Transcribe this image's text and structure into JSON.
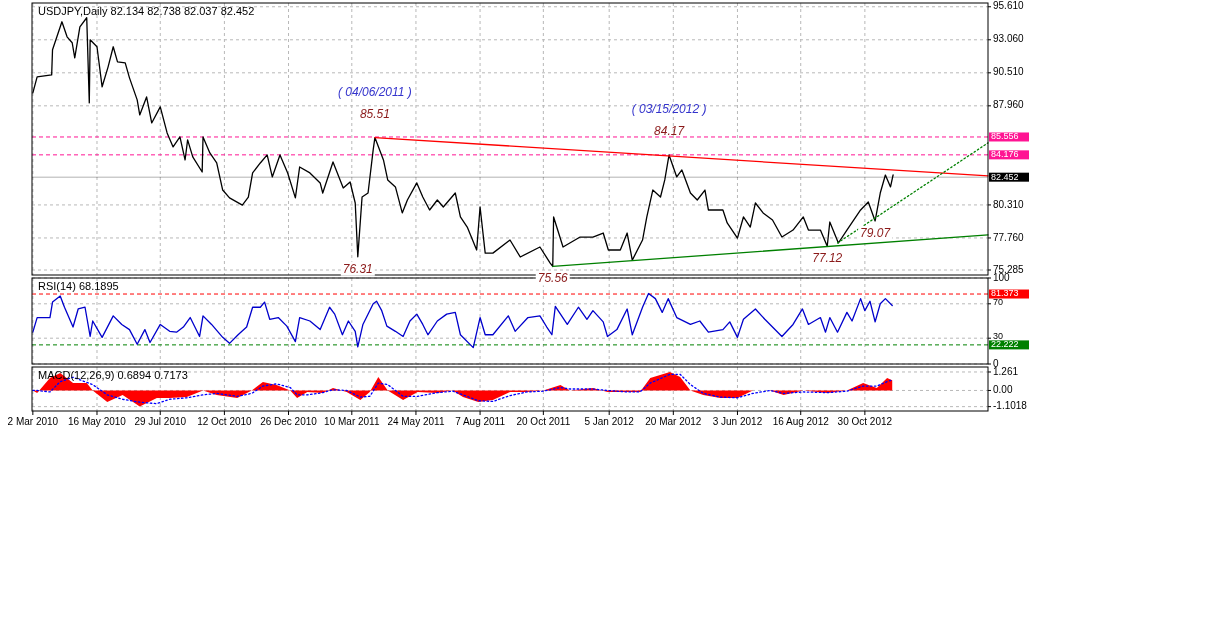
{
  "chart_data": [
    {
      "type": "line",
      "title": "USDJPY,Daily  82.134 82.738 82.037 82.452",
      "xlim": [
        "2010-03-01",
        "2013-03-23"
      ],
      "xticks": [
        {
          "value": "2010-03-02",
          "label": null
        },
        {
          "value": "2010-05-16",
          "label": null
        },
        {
          "value": "2010-07-29",
          "label": null
        },
        {
          "value": "2010-10-12",
          "label": null
        },
        {
          "value": "2010-12-26",
          "label": null
        },
        {
          "value": "2011-03-10",
          "label": null
        },
        {
          "value": "2011-05-24",
          "label": null
        },
        {
          "value": "2011-08-07",
          "label": null
        },
        {
          "value": "2011-10-20",
          "label": null
        },
        {
          "value": "2012-01-05",
          "label": null
        },
        {
          "value": "2012-03-20",
          "label": null
        },
        {
          "value": "2012-06-03",
          "label": null
        },
        {
          "value": "2012-08-16",
          "label": null
        },
        {
          "value": "2012-10-30",
          "label": null
        }
      ],
      "ylim": [
        74.9,
        95.9
      ],
      "yticks": [
        {
          "value": 95.61,
          "label": "95.610"
        },
        {
          "value": 93.06,
          "label": "93.060"
        },
        {
          "value": 90.51,
          "label": "90.510"
        },
        {
          "value": 87.96,
          "label": "87.960"
        },
        {
          "value": 80.31,
          "label": "80.310"
        },
        {
          "value": 77.76,
          "label": "77.760"
        },
        75.285
      ],
      "grid": true,
      "tick_labels": "y",
      "series": [
        {
          "color": "#000000",
          "x": [
            "2010-03-02",
            "2010-03-07",
            "2010-03-24",
            "2010-03-25",
            "2010-04-05",
            "2010-04-11",
            "2010-04-17",
            "2010-04-20",
            "2010-04-26",
            "2010-05-04",
            "2010-05-07",
            "2010-05-08",
            "2010-05-16",
            "2010-05-22",
            "2010-05-29",
            "2010-06-04",
            "2010-06-09",
            "2010-06-18",
            "2010-06-23",
            "2010-07-02",
            "2010-07-05",
            "2010-07-13",
            "2010-07-19",
            "2010-07-29",
            "2010-08-06",
            "2010-08-13",
            "2010-08-21",
            "2010-08-27",
            "2010-08-30",
            "2010-09-05",
            "2010-09-16",
            "2010-09-17",
            "2010-09-25",
            "2010-10-03",
            "2010-10-10",
            "2010-10-18",
            "2010-11-02",
            "2010-11-09",
            "2010-11-14",
            "2010-11-23",
            "2010-12-01",
            "2010-12-07",
            "2010-12-16",
            "2010-12-25",
            "2011-01-03",
            "2011-01-08",
            "2011-01-20",
            "2011-02-01",
            "2011-02-04",
            "2011-02-16",
            "2011-02-28",
            "2011-03-08",
            "2011-03-14",
            "2011-03-17",
            "2011-03-22",
            "2011-03-29",
            "2011-04-04",
            "2011-04-06",
            "2011-04-16",
            "2011-04-21",
            "2011-04-30",
            "2011-05-08",
            "2011-05-14",
            "2011-05-25",
            "2011-06-01",
            "2011-06-09",
            "2011-06-18",
            "2011-06-25",
            "2011-07-09",
            "2011-07-15",
            "2011-07-23",
            "2011-08-03",
            "2011-08-07",
            "2011-08-13",
            "2011-08-22",
            "2011-09-11",
            "2011-09-23",
            "2011-10-16",
            "2011-10-28",
            "2011-10-31",
            "2011-11-01",
            "2011-11-12",
            "2011-12-02",
            "2011-12-17",
            "2011-12-29",
            "2012-01-04",
            "2012-01-18",
            "2012-01-26",
            "2012-02-01",
            "2012-02-13",
            "2012-02-18",
            "2012-02-25",
            "2012-03-05",
            "2012-03-10",
            "2012-03-15",
            "2012-03-24",
            "2012-03-30",
            "2012-04-09",
            "2012-04-17",
            "2012-04-26",
            "2012-04-30",
            "2012-05-17",
            "2012-05-22",
            "2012-06-03",
            "2012-06-10",
            "2012-06-18",
            "2012-06-24",
            "2012-07-03",
            "2012-07-14",
            "2012-07-25",
            "2012-08-07",
            "2012-08-19",
            "2012-08-25",
            "2012-09-08",
            "2012-09-16",
            "2012-09-19",
            "2012-09-29",
            "2012-10-09",
            "2012-10-25",
            "2012-11-03",
            "2012-11-11",
            "2012-11-17",
            "2012-11-23",
            "2012-11-29",
            "2012-12-02"
          ],
          "values": [
            88.96,
            90.2,
            90.35,
            92.29,
            94.45,
            93.29,
            92.83,
            91.67,
            94.06,
            94.76,
            88.19,
            93.06,
            92.52,
            89.43,
            90.97,
            92.52,
            91.36,
            91.28,
            90.12,
            88.42,
            87.26,
            88.65,
            86.64,
            87.88,
            85.87,
            84.79,
            85.56,
            83.78,
            85.33,
            84.02,
            82.85,
            85.56,
            84.32,
            83.55,
            81.46,
            80.85,
            80.3,
            80.92,
            82.78,
            83.55,
            84.17,
            82.47,
            84.17,
            82.78,
            80.85,
            83.24,
            82.78,
            82.01,
            81.23,
            83.63,
            81.62,
            82.08,
            80.46,
            76.31,
            80.92,
            81.23,
            84.56,
            85.51,
            83.78,
            82.24,
            81.7,
            79.69,
            80.69,
            82.01,
            80.92,
            79.92,
            80.69,
            80.15,
            81.23,
            79.38,
            78.6,
            76.83,
            80.15,
            76.59,
            76.59,
            77.6,
            76.29,
            77.06,
            75.82,
            75.56,
            79.38,
            77.06,
            77.83,
            77.83,
            78.14,
            76.83,
            76.83,
            78.14,
            76.05,
            77.6,
            79.38,
            81.46,
            80.92,
            82.24,
            84.17,
            82.47,
            83.01,
            81.23,
            80.69,
            81.46,
            79.92,
            79.92,
            78.92,
            77.75,
            79.38,
            78.6,
            80.46,
            79.69,
            79.15,
            77.83,
            78.37,
            79.38,
            78.37,
            78.37,
            77.12,
            78.99,
            77.37,
            78.37,
            79.92,
            80.54,
            79.07,
            81.23,
            82.62,
            81.7,
            82.62
          ]
        },
        {
          "color": "#ff0000",
          "x": [
            "2011-04-06",
            "2013-03-23"
          ],
          "values": [
            85.51,
            82.55
          ]
        },
        {
          "color": "#008000",
          "x": [
            "2011-10-31",
            "2013-03-23"
          ],
          "values": [
            75.56,
            78.0
          ]
        },
        {
          "color": "#008000",
          "line_style": "dotted",
          "x": [
            "2012-09-28",
            "2013-03-23"
          ],
          "values": [
            77.37,
            85.1
          ]
        }
      ],
      "ref_lines": [
        {
          "axis": "y",
          "value": 85.556,
          "label": "85.556",
          "color": "#ff1493",
          "line_style": "dashed"
        },
        {
          "axis": "y",
          "value": 84.176,
          "label": "84.176",
          "color": "#ff1493",
          "line_style": "dashed"
        },
        {
          "axis": "y",
          "value": 82.452,
          "label": "82.452",
          "color": "#000000",
          "line_style": "solid"
        }
      ],
      "annotations": [
        "( 04/06/2011 )",
        {
          "text": "85.51",
          "x": "2011-04-06",
          "y": 85.51
        },
        "( 03/15/2012 )",
        {
          "text": "84.17",
          "x": "2012-03-15",
          "y": 84.17
        },
        {
          "text": "76.31",
          "x": "2011-03-17",
          "y": 76.31
        },
        {
          "text": "75.56",
          "x": "2011-10-31",
          "y": 75.56
        },
        {
          "text": "77.12",
          "x": "2012-09-16",
          "y": 77.12
        },
        {
          "text": "79.07",
          "x": "2012-11-11",
          "y": 79.07
        }
      ]
    },
    {
      "type": "line",
      "title": "RSI(14) 68.1895",
      "xlim": [
        "2010-03-01",
        "2013-03-23"
      ],
      "xticks": [
        {
          "value": "2010-03-02",
          "label": null
        },
        {
          "value": "2010-05-16",
          "label": null
        },
        {
          "value": "2010-07-29",
          "label": null
        },
        {
          "value": "2010-10-12",
          "label": null
        },
        {
          "value": "2010-12-26",
          "label": null
        },
        {
          "value": "2011-03-10",
          "label": null
        },
        {
          "value": "2011-05-24",
          "label": null
        },
        {
          "value": "2011-08-07",
          "label": null
        },
        {
          "value": "2011-10-20",
          "label": null
        },
        {
          "value": "2012-01-05",
          "label": null
        },
        {
          "value": "2012-03-20",
          "label": null
        },
        {
          "value": "2012-06-03",
          "label": null
        },
        {
          "value": "2012-08-16",
          "label": null
        },
        {
          "value": "2012-10-30",
          "label": null
        }
      ],
      "ylim": [
        0,
        100
      ],
      "yticks": [
        100,
        70,
        30,
        0
      ],
      "grid": true,
      "tick_labels": "y",
      "series": [
        {
          "color": "#0000cc",
          "x": [
            "2010-03-02",
            "2010-03-07",
            "2010-03-22",
            "2010-03-25",
            "2010-04-03",
            "2010-04-08",
            "2010-04-18",
            "2010-04-24",
            "2010-05-02",
            "2010-05-08",
            "2010-05-11",
            "2010-05-22",
            "2010-06-04",
            "2010-06-14",
            "2010-06-23",
            "2010-07-02",
            "2010-07-11",
            "2010-07-17",
            "2010-07-29",
            "2010-08-09",
            "2010-08-17",
            "2010-08-25",
            "2010-09-02",
            "2010-09-13",
            "2010-09-17",
            "2010-09-27",
            "2010-10-10",
            "2010-10-18",
            "2010-10-28",
            "2010-11-07",
            "2010-11-14",
            "2010-11-23",
            "2010-11-28",
            "2010-12-04",
            "2010-12-14",
            "2010-12-24",
            "2011-01-03",
            "2011-01-08",
            "2011-01-20",
            "2011-02-01",
            "2011-02-12",
            "2011-02-18",
            "2011-02-27",
            "2011-03-06",
            "2011-03-14",
            "2011-03-17",
            "2011-03-23",
            "2011-04-04",
            "2011-04-08",
            "2011-04-14",
            "2011-04-20",
            "2011-04-30",
            "2011-05-09",
            "2011-05-17",
            "2011-05-25",
            "2011-06-01",
            "2011-06-07",
            "2011-06-18",
            "2011-06-29",
            "2011-07-09",
            "2011-07-15",
            "2011-07-30",
            "2011-08-07",
            "2011-08-13",
            "2011-08-22",
            "2011-09-09",
            "2011-09-17",
            "2011-10-02",
            "2011-10-16",
            "2011-10-24",
            "2011-10-30",
            "2011-11-03",
            "2011-11-17",
            "2011-11-30",
            "2011-12-10",
            "2011-12-17",
            "2011-12-29",
            "2012-01-03",
            "2012-01-14",
            "2012-01-26",
            "2012-02-01",
            "2012-02-13",
            "2012-02-20",
            "2012-02-28",
            "2012-03-07",
            "2012-03-14",
            "2012-03-24",
            "2012-04-09",
            "2012-04-20",
            "2012-04-30",
            "2012-05-17",
            "2012-05-25",
            "2012-06-03",
            "2012-06-10",
            "2012-06-24",
            "2012-07-05",
            "2012-07-25",
            "2012-08-07",
            "2012-08-18",
            "2012-08-25",
            "2012-09-08",
            "2012-09-14",
            "2012-09-19",
            "2012-09-28",
            "2012-10-09",
            "2012-10-15",
            "2012-10-25",
            "2012-10-30",
            "2012-11-05",
            "2012-11-11",
            "2012-11-17",
            "2012-11-23",
            "2012-12-01"
          ],
          "values": [
            37,
            54,
            54,
            72,
            79,
            66,
            43,
            64,
            66,
            32,
            50,
            31,
            56,
            46,
            40,
            23,
            40,
            25,
            46,
            38,
            37,
            43,
            54,
            32,
            56,
            46,
            31,
            24,
            34,
            43,
            66,
            66,
            72,
            52,
            54,
            44,
            26,
            54,
            50,
            40,
            66,
            58,
            34,
            50,
            38,
            20,
            46,
            70,
            73,
            62,
            44,
            38,
            32,
            50,
            58,
            46,
            34,
            50,
            58,
            60,
            34,
            19,
            54,
            34,
            34,
            56,
            38,
            54,
            56,
            43,
            34,
            67,
            46,
            66,
            52,
            62,
            49,
            32,
            40,
            64,
            34,
            66,
            82,
            76,
            60,
            76,
            54,
            46,
            50,
            37,
            40,
            49,
            31,
            52,
            64,
            52,
            32,
            46,
            64,
            46,
            54,
            37,
            54,
            37,
            60,
            50,
            76,
            62,
            73,
            49,
            70,
            76,
            68
          ]
        }
      ],
      "ref_lines": [
        {
          "axis": "y",
          "value": 81.373,
          "label": "81.373",
          "color": "#ff0000",
          "line_style": "dashed"
        },
        {
          "axis": "y",
          "value": 22.222,
          "label": "22.222",
          "color": "#008000",
          "line_style": "dashed"
        }
      ]
    },
    {
      "type": "area",
      "title": "MACD(12,26,9) 0.6894 0.7173",
      "xlim": [
        "2010-03-01",
        "2013-03-23"
      ],
      "xticks": [
        {
          "value": "2010-03-02",
          "label": "2 Mar 2010"
        },
        {
          "value": "2010-05-16",
          "label": "16 May 2010"
        },
        {
          "value": "2010-07-29",
          "label": "29 Jul 2010"
        },
        {
          "value": "2010-10-12",
          "label": "12 Oct 2010"
        },
        {
          "value": "2010-12-26",
          "label": "26 Dec 2010"
        },
        {
          "value": "2011-03-10",
          "label": "10 Mar 2011"
        },
        {
          "value": "2011-05-24",
          "label": "24 May 2011"
        },
        {
          "value": "2011-08-07",
          "label": "7 Aug 2011"
        },
        {
          "value": "2011-10-20",
          "label": "20 Oct 2011"
        },
        {
          "value": "2012-01-05",
          "label": "5 Jan 2012"
        },
        {
          "value": "2012-03-20",
          "label": "20 Mar 2012"
        },
        {
          "value": "2012-06-03",
          "label": "3 Jun 2012"
        },
        {
          "value": "2012-08-16",
          "label": "16 Aug 2012"
        },
        {
          "value": "2012-10-30",
          "label": "30 Oct 2012"
        }
      ],
      "ylim": [
        -1.4,
        1.6
      ],
      "yticks": [
        1.261,
        {
          "value": 0,
          "label": "0.00"
        },
        -1.1018
      ],
      "grid": true,
      "x": [
        "2010-03-02",
        "2010-03-07",
        "2010-03-22",
        "2010-04-03",
        "2010-04-18",
        "2010-05-04",
        "2010-05-11",
        "2010-05-28",
        "2010-06-15",
        "2010-07-05",
        "2010-07-25",
        "2010-08-09",
        "2010-08-29",
        "2010-09-17",
        "2010-10-03",
        "2010-10-27",
        "2010-11-13",
        "2010-11-26",
        "2010-12-12",
        "2010-12-28",
        "2011-01-05",
        "2011-01-17",
        "2011-02-04",
        "2011-02-16",
        "2011-03-04",
        "2011-03-20",
        "2011-03-31",
        "2011-04-10",
        "2011-04-21",
        "2011-05-09",
        "2011-05-26",
        "2011-06-18",
        "2011-07-06",
        "2011-07-18",
        "2011-08-05",
        "2011-08-22",
        "2011-09-11",
        "2011-10-01",
        "2011-10-20",
        "2011-11-09",
        "2011-11-20",
        "2011-12-17",
        "2012-01-03",
        "2012-01-26",
        "2012-02-10",
        "2012-02-22",
        "2012-03-16",
        "2012-03-28",
        "2012-04-09",
        "2012-04-24",
        "2012-05-14",
        "2012-06-03",
        "2012-06-21",
        "2012-07-11",
        "2012-07-27",
        "2012-08-19",
        "2012-09-16",
        "2012-10-09",
        "2012-10-28",
        "2012-11-13",
        "2012-11-25",
        "2012-12-01"
      ],
      "series": [
        {
          "color": "#ff0000",
          "values": [
            0,
            -0.17,
            0.85,
            1.19,
            0.51,
            0.51,
            0,
            -0.78,
            -0.31,
            -1.1,
            -0.51,
            -0.51,
            -0.44,
            0,
            -0.31,
            -0.51,
            0,
            0.58,
            0.37,
            0,
            -0.51,
            -0.1,
            -0.17,
            0.17,
            -0.1,
            -0.65,
            -0.1,
            0.92,
            0,
            -0.65,
            -0.1,
            -0.17,
            0,
            -0.44,
            -0.78,
            -0.65,
            -0.1,
            -0.1,
            0,
            0.37,
            0,
            0.17,
            -0.1,
            -0.1,
            -0.1,
            0.85,
            1.26,
            0.92,
            0,
            -0.31,
            -0.51,
            -0.51,
            0,
            0,
            -0.31,
            0,
            -0.17,
            0,
            0.51,
            0.17,
            0.85,
            0.69
          ]
        },
        {
          "type": "line",
          "color": "#0000ff",
          "line_style": "dotted",
          "values": [
            0,
            0,
            -0.1,
            0.6,
            0.9,
            0.55,
            0.4,
            -0.3,
            -0.6,
            -0.8,
            -0.9,
            -0.6,
            -0.5,
            -0.3,
            -0.2,
            -0.4,
            -0.2,
            0.3,
            0.45,
            0.2,
            -0.3,
            -0.3,
            -0.15,
            0.05,
            0,
            -0.45,
            -0.4,
            0.5,
            0.4,
            -0.4,
            -0.4,
            -0.15,
            -0.05,
            -0.3,
            -0.7,
            -0.75,
            -0.35,
            -0.1,
            -0.05,
            0.2,
            0.1,
            0.1,
            0,
            -0.1,
            -0.1,
            0.5,
            1.1,
            1.1,
            0.4,
            -0.2,
            -0.45,
            -0.5,
            -0.2,
            0,
            -0.2,
            -0.1,
            -0.15,
            -0.05,
            0.3,
            0.3,
            0.6,
            0.72
          ]
        }
      ]
    }
  ]
}
